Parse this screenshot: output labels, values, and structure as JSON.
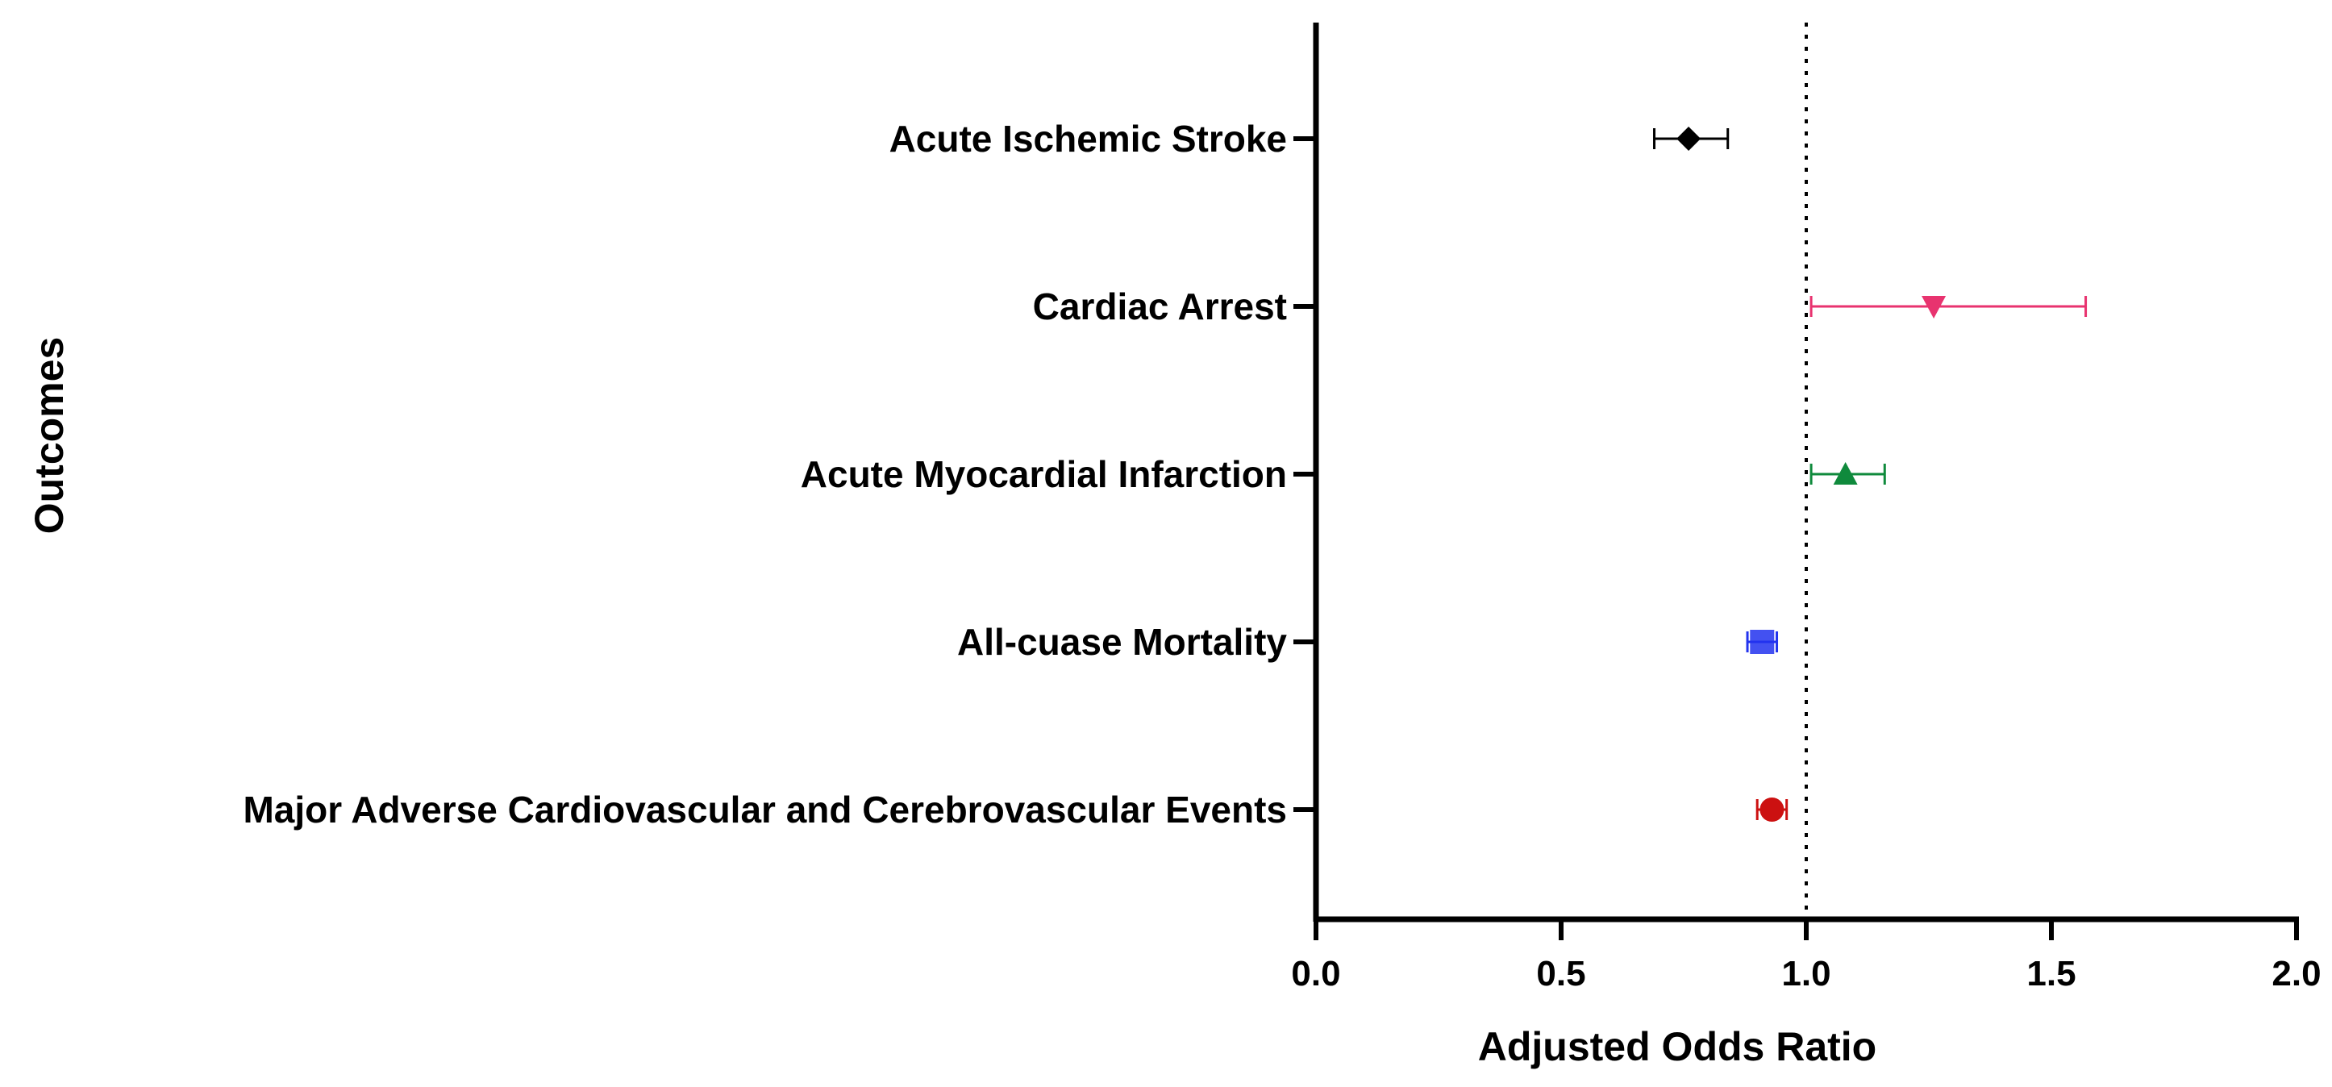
{
  "chart_data": {
    "type": "scatter",
    "subtype": "forest-plot",
    "title": "",
    "xlabel": "Adjusted Odds Ratio",
    "ylabel": "Outcomes",
    "xlim": [
      0.0,
      2.0
    ],
    "xticks": [
      0.0,
      0.5,
      1.0,
      1.5,
      2.0
    ],
    "xtick_labels": [
      "0.0",
      "0.5",
      "1.0",
      "1.5",
      "2.0"
    ],
    "reference_line": {
      "x": 1.0,
      "style": "dotted"
    },
    "grid": false,
    "legend": "none",
    "categories": [
      "Acute Ischemic Stroke",
      "Cardiac Arrest",
      "Acute Myocardial Infarction",
      "All-cuase Mortality",
      "Major Adverse Cardiovascular and Cerebrovascular Events"
    ],
    "points": [
      {
        "label": "Acute Ischemic Stroke",
        "or": 0.76,
        "ci_low": 0.69,
        "ci_high": 0.84,
        "marker": "diamond",
        "color": "#000000"
      },
      {
        "label": "Cardiac Arrest",
        "or": 1.26,
        "ci_low": 1.01,
        "ci_high": 1.57,
        "marker": "triangle-down",
        "color": "#e8336f"
      },
      {
        "label": "Acute Myocardial Infarction",
        "or": 1.08,
        "ci_low": 1.01,
        "ci_high": 1.16,
        "marker": "triangle-up",
        "color": "#0f8a3c"
      },
      {
        "label": "All-cuase Mortality",
        "or": 0.91,
        "ci_low": 0.88,
        "ci_high": 0.94,
        "marker": "square",
        "color": "#2233ee"
      },
      {
        "label": "Major Adverse Cardiovascular and Cerebrovascular Events",
        "or": 0.93,
        "ci_low": 0.9,
        "ci_high": 0.96,
        "marker": "circle",
        "color": "#cc1111"
      }
    ]
  }
}
